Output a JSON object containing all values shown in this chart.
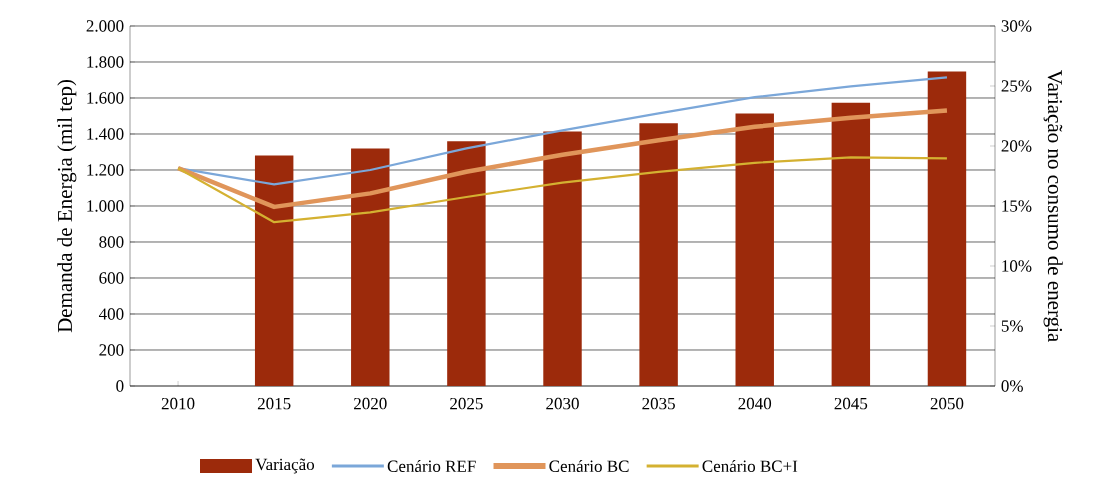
{
  "chart_data": {
    "type": "bar",
    "categories": [
      "2010",
      "2015",
      "2020",
      "2025",
      "2030",
      "2035",
      "2040",
      "2045",
      "2050"
    ],
    "series": [
      {
        "name": "Variação",
        "axis": "y2",
        "color": "#9c2a0b",
        "values": [
          null,
          19.2,
          19.8,
          20.4,
          21.2,
          21.9,
          22.7,
          23.6,
          26.2
        ]
      },
      {
        "name": "Cenário REF",
        "type": "line",
        "color": "#7ba7d9",
        "values": [
          1210,
          1120,
          1200,
          1320,
          1420,
          1515,
          1605,
          1665,
          1715
        ]
      },
      {
        "name": "Cenário BC",
        "type": "line",
        "color": "#e0955a",
        "values": [
          1210,
          995,
          1070,
          1190,
          1285,
          1365,
          1440,
          1490,
          1530
        ]
      },
      {
        "name": "Cenário BC+I",
        "type": "line",
        "color": "#d4b131",
        "values": [
          1210,
          910,
          965,
          1050,
          1130,
          1190,
          1240,
          1270,
          1265
        ]
      }
    ],
    "ylabel": "Demanda de Energia (mil tep)",
    "y2label": "Variação no consumo de energia",
    "ylim": [
      0,
      2000
    ],
    "yticks": [
      0,
      200,
      400,
      600,
      800,
      {
        "value": 1000,
        "label": "1.000"
      },
      {
        "value": 1200,
        "label": "1.200"
      },
      {
        "value": 1400,
        "label": "1.400"
      },
      {
        "value": 1600,
        "label": "1.600"
      },
      {
        "value": 1800,
        "label": "1.800"
      },
      {
        "value": 2000,
        "label": "2.000"
      }
    ],
    "y2lim": [
      0,
      30
    ],
    "y2ticks": [
      {
        "value": 0,
        "label": "0%"
      },
      {
        "value": 5,
        "label": "5%"
      },
      {
        "value": 10,
        "label": "10%"
      },
      {
        "value": 15,
        "label": "15%"
      },
      {
        "value": 20,
        "label": "20%"
      },
      {
        "value": 25,
        "label": "25%"
      },
      {
        "value": 30,
        "label": "30%"
      }
    ],
    "grid": "y",
    "legend": "bottom"
  }
}
